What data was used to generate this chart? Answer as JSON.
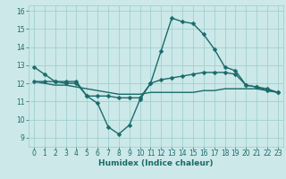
{
  "xlabel": "Humidex (Indice chaleur)",
  "bg_color": "#cce8e8",
  "line_color": "#1a6b6b",
  "markersize": 2.5,
  "linewidth": 1.0,
  "x": [
    0,
    1,
    2,
    3,
    4,
    5,
    6,
    7,
    8,
    9,
    10,
    11,
    12,
    13,
    14,
    15,
    16,
    17,
    18,
    19,
    20,
    21,
    22,
    23
  ],
  "line1": [
    12.9,
    12.5,
    12.1,
    12.1,
    12.1,
    11.3,
    10.9,
    9.6,
    9.2,
    9.7,
    11.1,
    12.0,
    13.8,
    15.6,
    15.4,
    15.3,
    14.7,
    13.9,
    12.9,
    12.7,
    11.9,
    11.8,
    11.7,
    11.5
  ],
  "line2": [
    12.1,
    12.1,
    12.1,
    12.0,
    12.0,
    11.3,
    11.3,
    11.3,
    11.2,
    11.2,
    11.2,
    12.0,
    12.2,
    12.3,
    12.4,
    12.5,
    12.6,
    12.6,
    12.6,
    12.5,
    11.9,
    11.8,
    11.6,
    11.5
  ],
  "line3": [
    12.1,
    12.0,
    11.9,
    11.9,
    11.8,
    11.7,
    11.6,
    11.5,
    11.4,
    11.4,
    11.4,
    11.5,
    11.5,
    11.5,
    11.5,
    11.5,
    11.6,
    11.6,
    11.7,
    11.7,
    11.7,
    11.7,
    11.6,
    11.5
  ],
  "ylim": [
    8.5,
    16.3
  ],
  "xlim": [
    -0.5,
    23.5
  ],
  "yticks": [
    9,
    10,
    11,
    12,
    13,
    14,
    15,
    16
  ],
  "xticks": [
    0,
    1,
    2,
    3,
    4,
    5,
    6,
    7,
    8,
    9,
    10,
    11,
    12,
    13,
    14,
    15,
    16,
    17,
    18,
    19,
    20,
    21,
    22,
    23
  ],
  "grid_color": "#99cccc",
  "tick_fontsize": 5.5,
  "xlabel_fontsize": 6.5
}
